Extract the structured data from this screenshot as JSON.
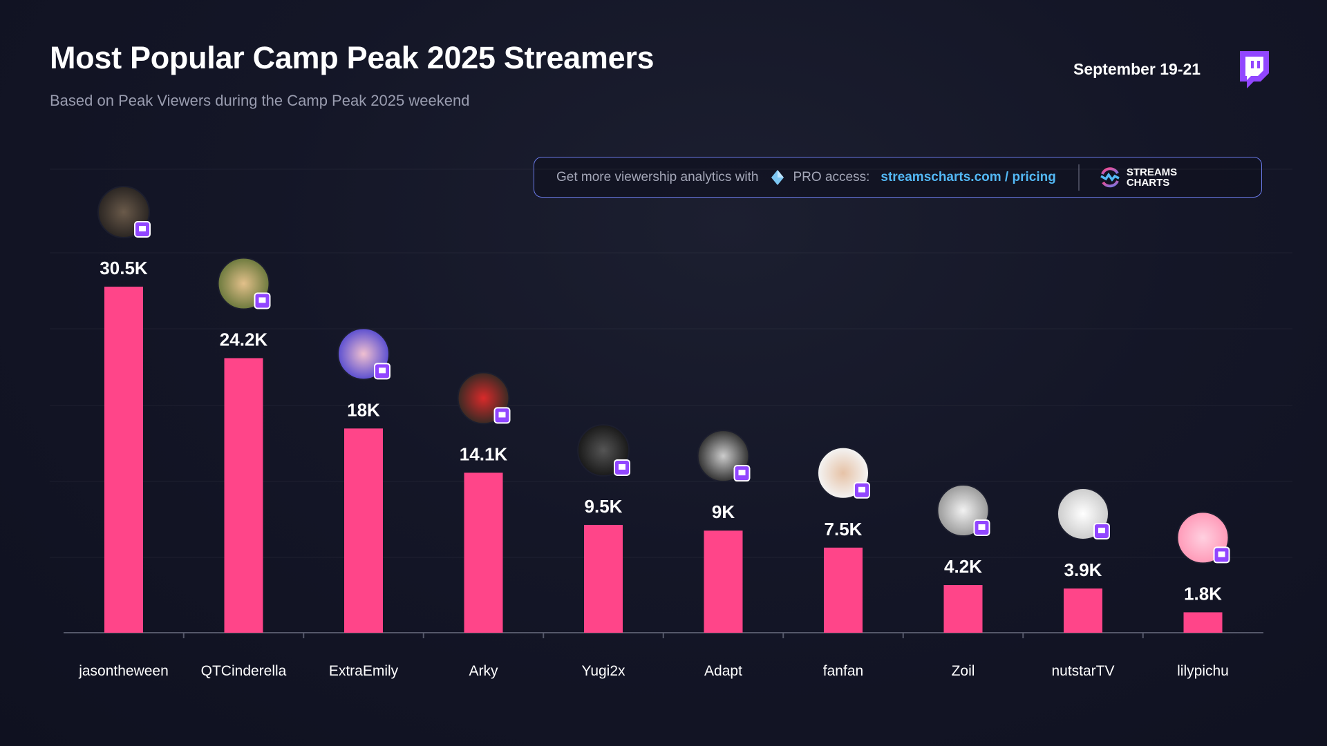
{
  "header": {
    "title": "Most Popular Camp Peak 2025 Streamers",
    "subtitle": "Based on Peak Viewers during the Camp Peak 2025 weekend",
    "date": "September 19-21",
    "platform_icon": "twitch-icon"
  },
  "banner": {
    "text": "Get more viewership analytics with",
    "gem_icon": "diamond-icon",
    "pro": "PRO access:",
    "link": "streamscharts.com / pricing",
    "brand_line1": "STREAMS",
    "brand_line2": "CHARTS"
  },
  "colors": {
    "bar": "#ff4589",
    "accent": "#53b8f5",
    "twitch": "#9146ff",
    "border": "#6b7bea"
  },
  "chart_data": {
    "type": "bar",
    "title": "Most Popular Camp Peak 2025 Streamers",
    "xlabel": "",
    "ylabel": "",
    "categories": [
      "jasontheween",
      "QTCinderella",
      "ExtraEmily",
      "Arky",
      "Yugi2x",
      "Adapt",
      "fanfan",
      "Zoil",
      "nutstarTV",
      "lilypichu"
    ],
    "values": [
      30500,
      24200,
      18000,
      14100,
      9500,
      9000,
      7500,
      4200,
      3900,
      1800
    ],
    "data_labels": [
      "30.5K",
      "24.2K",
      "18K",
      "14.1K",
      "9.5K",
      "9K",
      "7.5K",
      "4.2K",
      "3.9K",
      "1.8K"
    ],
    "ylim": [
      0,
      30500
    ],
    "grid": true,
    "legend": "none"
  }
}
